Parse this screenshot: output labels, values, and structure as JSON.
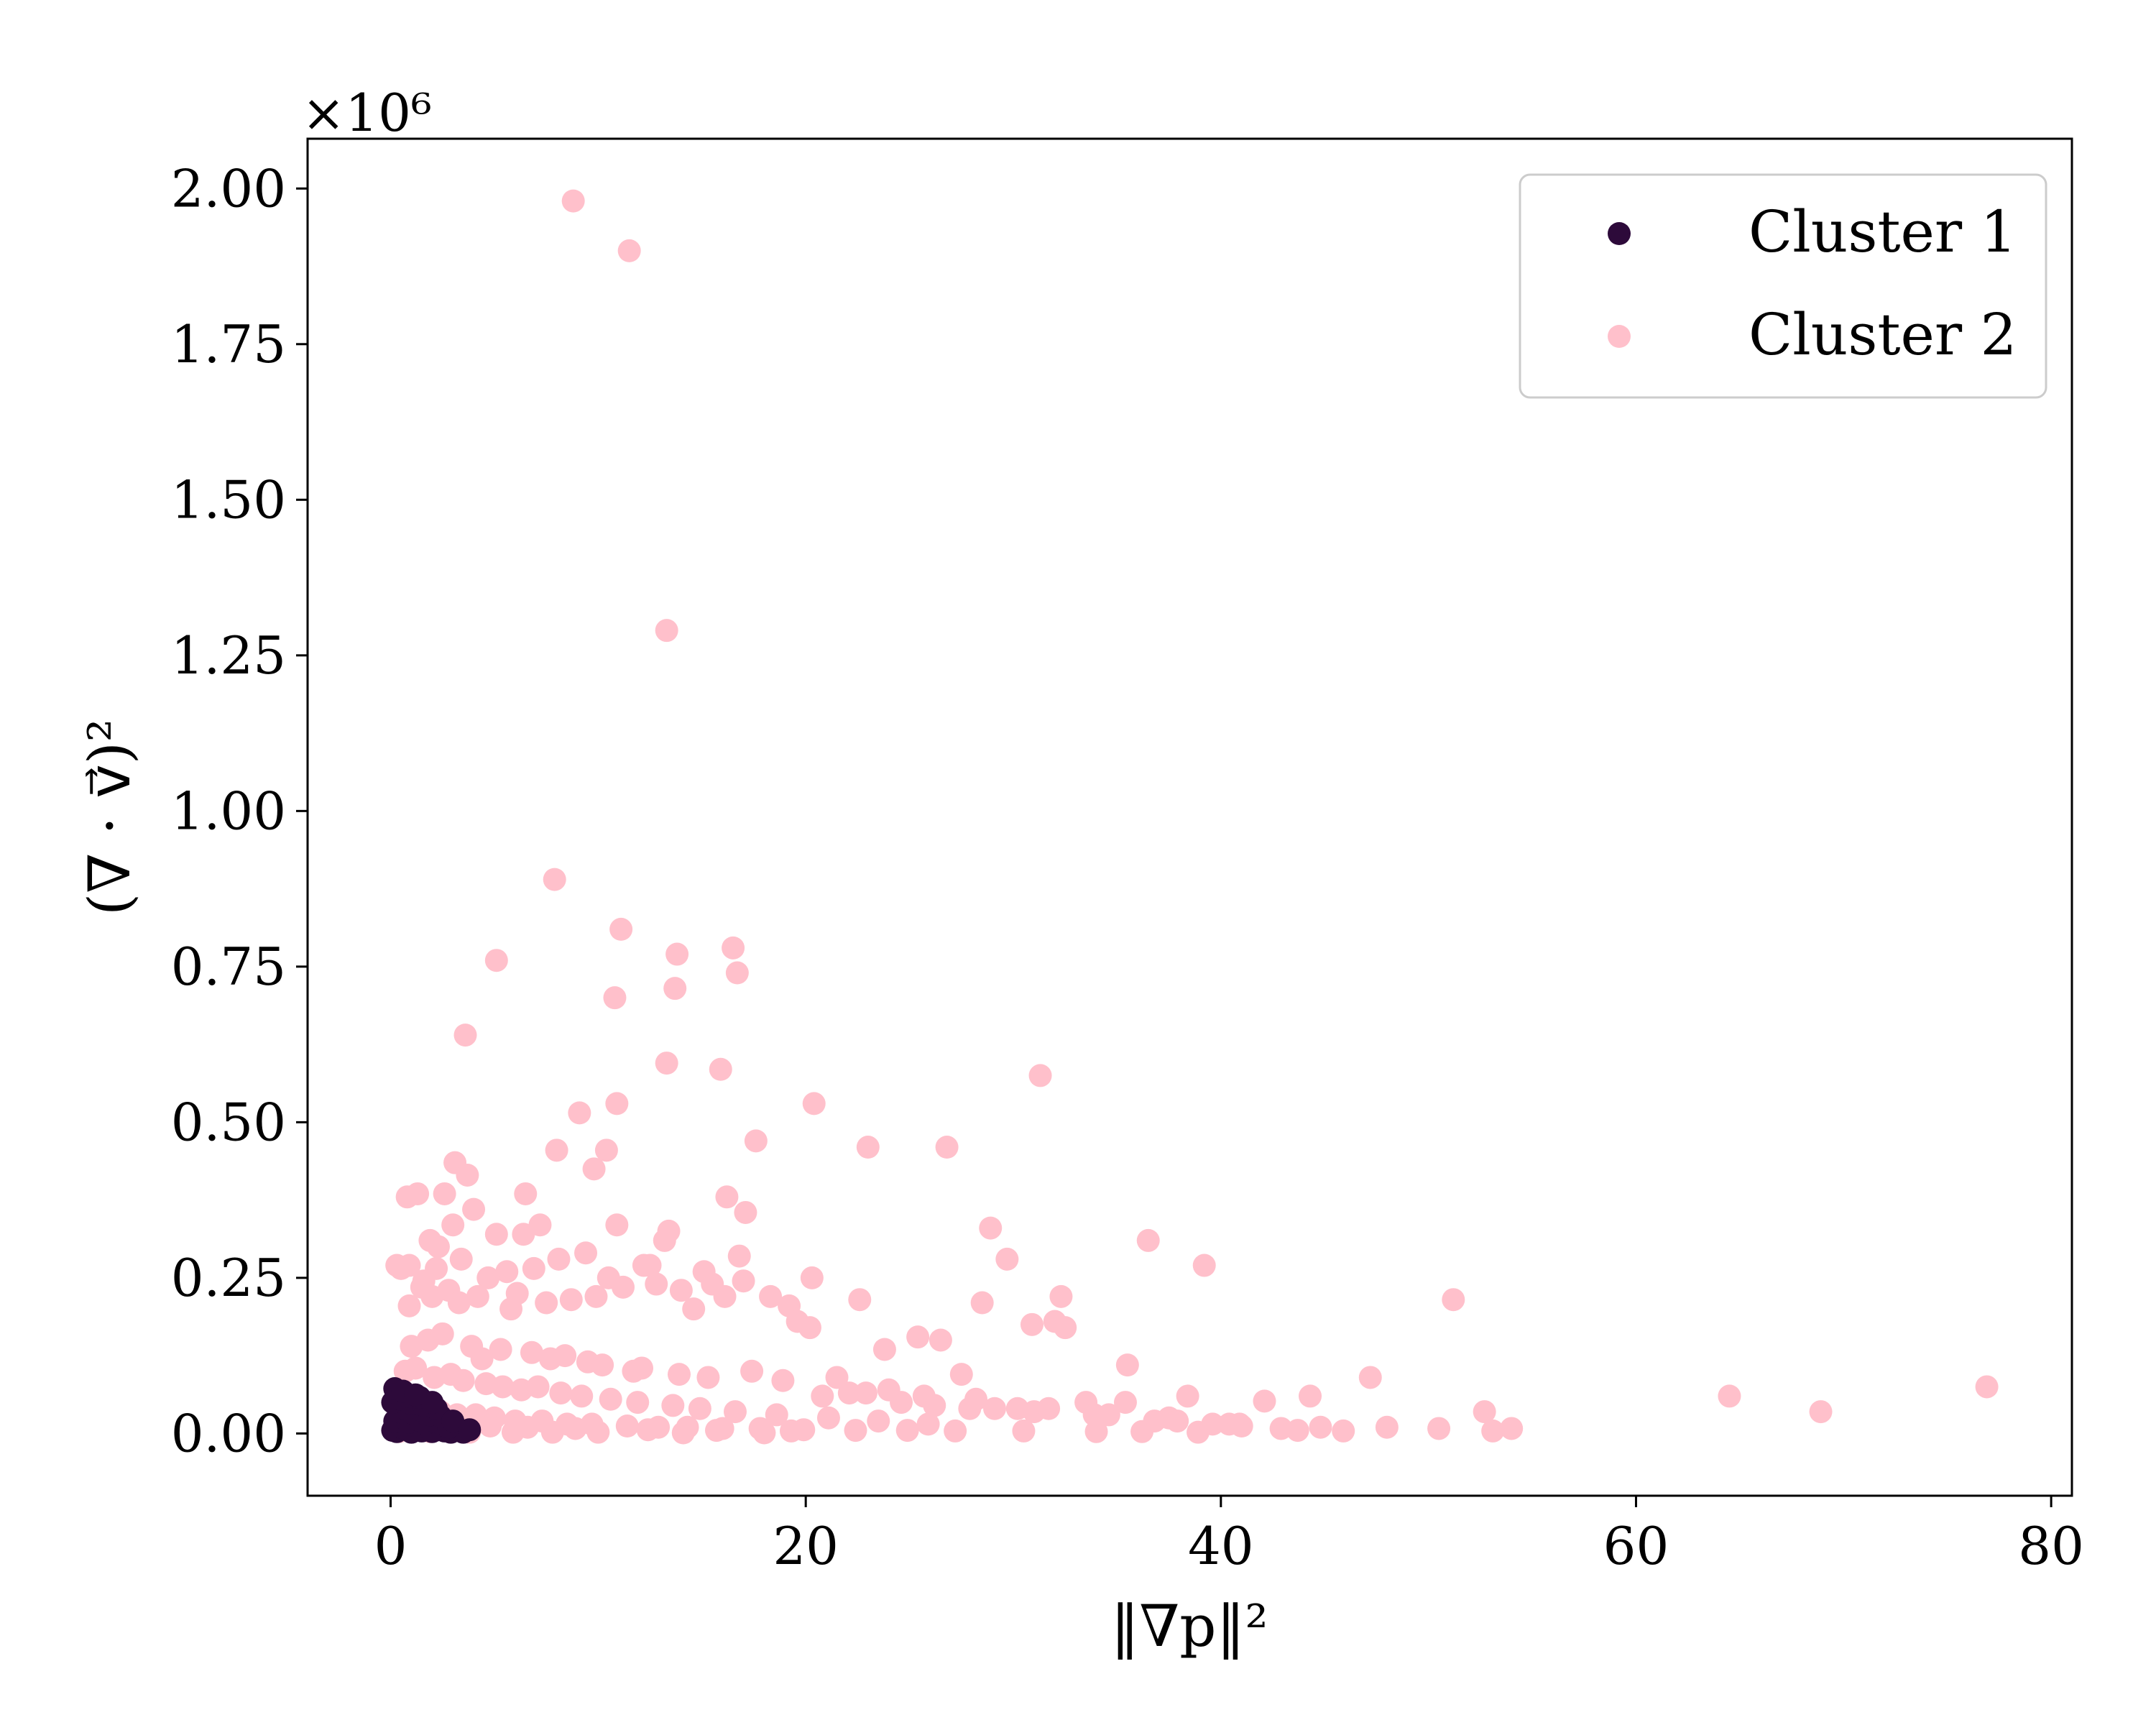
{
  "chart_data": {
    "type": "scatter",
    "title": "",
    "xlabel": "‖∇p‖²",
    "ylabel": "(∇ · v⃗)²",
    "y_offset_label": "×10⁶",
    "xlim": [
      -4,
      81
    ],
    "ylim": [
      -0.1,
      2.08
    ],
    "x_ticks": [
      0,
      20,
      40,
      60,
      80
    ],
    "x_tick_labels": [
      "0",
      "20",
      "40",
      "60",
      "80"
    ],
    "y_ticks": [
      0.0,
      0.25,
      0.5,
      0.75,
      1.0,
      1.25,
      1.5,
      1.75,
      2.0
    ],
    "y_tick_labels": [
      "0.00",
      "0.25",
      "0.50",
      "0.75",
      "1.00",
      "1.25",
      "1.50",
      "1.75",
      "2.00"
    ],
    "grid": false,
    "legend_position": "top-right",
    "series": [
      {
        "name": "Cluster 1",
        "color": "#2d0a3a",
        "x": [
          0.1,
          0.3,
          0.5,
          0.8,
          1.0,
          1.2,
          1.5,
          1.8,
          2.0,
          2.3,
          2.6,
          2.9,
          3.2,
          3.5,
          0.2,
          0.6,
          0.9,
          1.3,
          1.7,
          2.1,
          2.5,
          2.8,
          0.4,
          0.7,
          1.1,
          1.4,
          1.9,
          2.4,
          0.1,
          0.5,
          1.0,
          1.6,
          2.2,
          0.3,
          0.8,
          1.4,
          2.0,
          3.0,
          3.8,
          0.2,
          0.6,
          1.2
        ],
        "y": [
          0.005,
          0.003,
          0.01,
          0.006,
          0.002,
          0.012,
          0.004,
          0.008,
          0.003,
          0.006,
          0.004,
          0.002,
          0.005,
          0.002,
          0.02,
          0.025,
          0.018,
          0.022,
          0.016,
          0.02,
          0.015,
          0.01,
          0.035,
          0.04,
          0.032,
          0.038,
          0.03,
          0.028,
          0.05,
          0.055,
          0.048,
          0.045,
          0.04,
          0.065,
          0.06,
          0.058,
          0.05,
          0.02,
          0.006,
          0.072,
          0.068,
          0.062
        ]
      },
      {
        "name": "Cluster 2",
        "color": "#ffc0cb",
        "x": [
          8.8,
          11.5,
          13.3,
          7.9,
          11.1,
          16.5,
          13.8,
          16.7,
          5.1,
          10.8,
          13.7,
          3.6,
          13.3,
          15.9,
          31.3,
          20.4,
          9.1,
          10.9,
          17.6,
          23.0,
          26.8,
          8.0,
          10.4,
          9.8,
          3.1,
          3.7,
          0.8,
          1.3,
          6.5,
          16.2,
          4.0,
          2.6,
          2.3,
          1.9,
          17.1,
          0.9,
          28.9,
          3.0,
          7.2,
          13.4,
          36.5,
          6.4,
          10.9,
          5.1,
          13.2,
          16.8,
          0.3,
          12.5,
          20.3,
          32.3,
          22.6,
          28.5,
          51.2,
          32.0,
          30.9,
          32.5,
          25.4,
          26.5,
          39.2,
          29.7,
          47.2,
          64.5,
          68.9,
          76.9,
          44.3,
          42.1,
          52.7,
          54.0,
          45.9,
          42.9,
          40.4,
          38.4,
          33.5,
          35.5,
          35.4,
          31.7,
          27.5,
          23.8,
          20.2,
          19.2,
          17.0,
          15.5,
          14.0,
          12.2,
          10.5,
          9.4,
          8.1,
          6.9,
          5.6,
          4.7,
          3.4,
          2.2,
          1.6,
          0.5,
          0.9,
          1.5,
          2.0,
          2.8,
          3.3,
          4.2,
          5.8,
          6.1,
          7.5,
          8.7,
          9.9,
          11.2,
          12.8,
          14.6,
          15.1,
          16.1,
          18.3,
          19.6,
          21.5,
          22.1,
          24.0,
          25.7,
          27.9,
          28.2,
          30.2,
          33.9,
          36.8,
          37.5,
          39.6,
          41.0,
          43.7,
          48.0,
          50.5,
          53.1,
          1.0,
          1.8,
          2.5,
          3.9,
          4.4,
          5.3,
          6.8,
          7.7,
          8.4,
          9.5,
          10.2,
          11.7,
          12.1,
          13.9,
          15.3,
          17.4,
          18.9,
          20.8,
          22.9,
          24.6,
          26.2,
          29.1,
          31.0,
          34.6,
          37.9,
          40.9,
          44.8,
          0.7,
          1.2,
          2.1,
          2.9,
          3.5,
          4.6,
          5.4,
          6.3,
          7.1,
          8.2,
          9.2,
          10.6,
          11.9,
          13.6,
          14.9,
          16.6,
          18.6,
          21.1,
          23.5,
          25.9,
          0.6,
          1.1,
          1.7,
          2.4,
          3.2,
          4.1,
          5.0,
          6.0,
          7.3,
          8.5,
          9.7,
          11.4,
          12.9,
          14.3,
          16.0,
          17.8,
          19.9,
          22.4,
          24.9,
          27.2,
          30.5,
          34.0,
          36.2,
          38.9,
          1.4,
          2.7,
          4.8,
          6.6,
          8.9,
          12.4,
          15.7,
          19.3,
          0.4,
          1.9,
          3.8,
          5.9,
          7.8,
          10.0,
          14.1,
          18.0
        ],
        "y": [
          1.98,
          1.9,
          1.29,
          0.89,
          0.81,
          0.78,
          0.77,
          0.74,
          0.76,
          0.7,
          0.715,
          0.64,
          0.595,
          0.585,
          0.575,
          0.53,
          0.515,
          0.53,
          0.47,
          0.46,
          0.46,
          0.455,
          0.455,
          0.425,
          0.435,
          0.415,
          0.38,
          0.385,
          0.385,
          0.38,
          0.36,
          0.385,
          0.3,
          0.31,
          0.355,
          0.27,
          0.33,
          0.335,
          0.335,
          0.325,
          0.31,
          0.32,
          0.335,
          0.32,
          0.31,
          0.285,
          0.27,
          0.27,
          0.25,
          0.22,
          0.215,
          0.21,
          0.215,
          0.18,
          0.175,
          0.17,
          0.155,
          0.15,
          0.27,
          0.28,
          0.09,
          0.06,
          0.035,
          0.075,
          0.06,
          0.052,
          0.035,
          0.008,
          0.004,
          0.008,
          0.015,
          0.06,
          0.05,
          0.11,
          0.05,
          0.04,
          0.095,
          0.135,
          0.17,
          0.205,
          0.245,
          0.24,
          0.23,
          0.27,
          0.25,
          0.29,
          0.28,
          0.265,
          0.26,
          0.25,
          0.28,
          0.265,
          0.245,
          0.265,
          0.205,
          0.235,
          0.22,
          0.23,
          0.21,
          0.22,
          0.2,
          0.225,
          0.21,
          0.215,
          0.22,
          0.235,
          0.24,
          0.2,
          0.26,
          0.22,
          0.22,
          0.18,
          0.09,
          0.065,
          0.07,
          0.06,
          0.04,
          0.055,
          0.04,
          0.03,
          0.02,
          0.025,
          0.015,
          0.012,
          0.005,
          0.01,
          0.008,
          0.004,
          0.14,
          0.15,
          0.16,
          0.14,
          0.12,
          0.135,
          0.13,
          0.12,
          0.125,
          0.115,
          0.11,
          0.1,
          0.105,
          0.095,
          0.09,
          0.1,
          0.085,
          0.06,
          0.065,
          0.05,
          0.045,
          0.04,
          0.035,
          0.03,
          0.02,
          0.015,
          0.01,
          0.1,
          0.105,
          0.09,
          0.095,
          0.085,
          0.08,
          0.075,
          0.07,
          0.075,
          0.065,
          0.06,
          0.055,
          0.05,
          0.045,
          0.04,
          0.035,
          0.03,
          0.025,
          0.02,
          0.015,
          0.05,
          0.045,
          0.04,
          0.035,
          0.03,
          0.03,
          0.025,
          0.02,
          0.02,
          0.015,
          0.015,
          0.012,
          0.01,
          0.01,
          0.008,
          0.008,
          0.006,
          0.005,
          0.005,
          0.004,
          0.004,
          0.003,
          0.003,
          0.002,
          0.02,
          0.015,
          0.012,
          0.01,
          0.008,
          0.006,
          0.005,
          0.004,
          0.003,
          0.003,
          0.002,
          0.002,
          0.002,
          0.002,
          0.001,
          0.001
        ]
      }
    ]
  }
}
